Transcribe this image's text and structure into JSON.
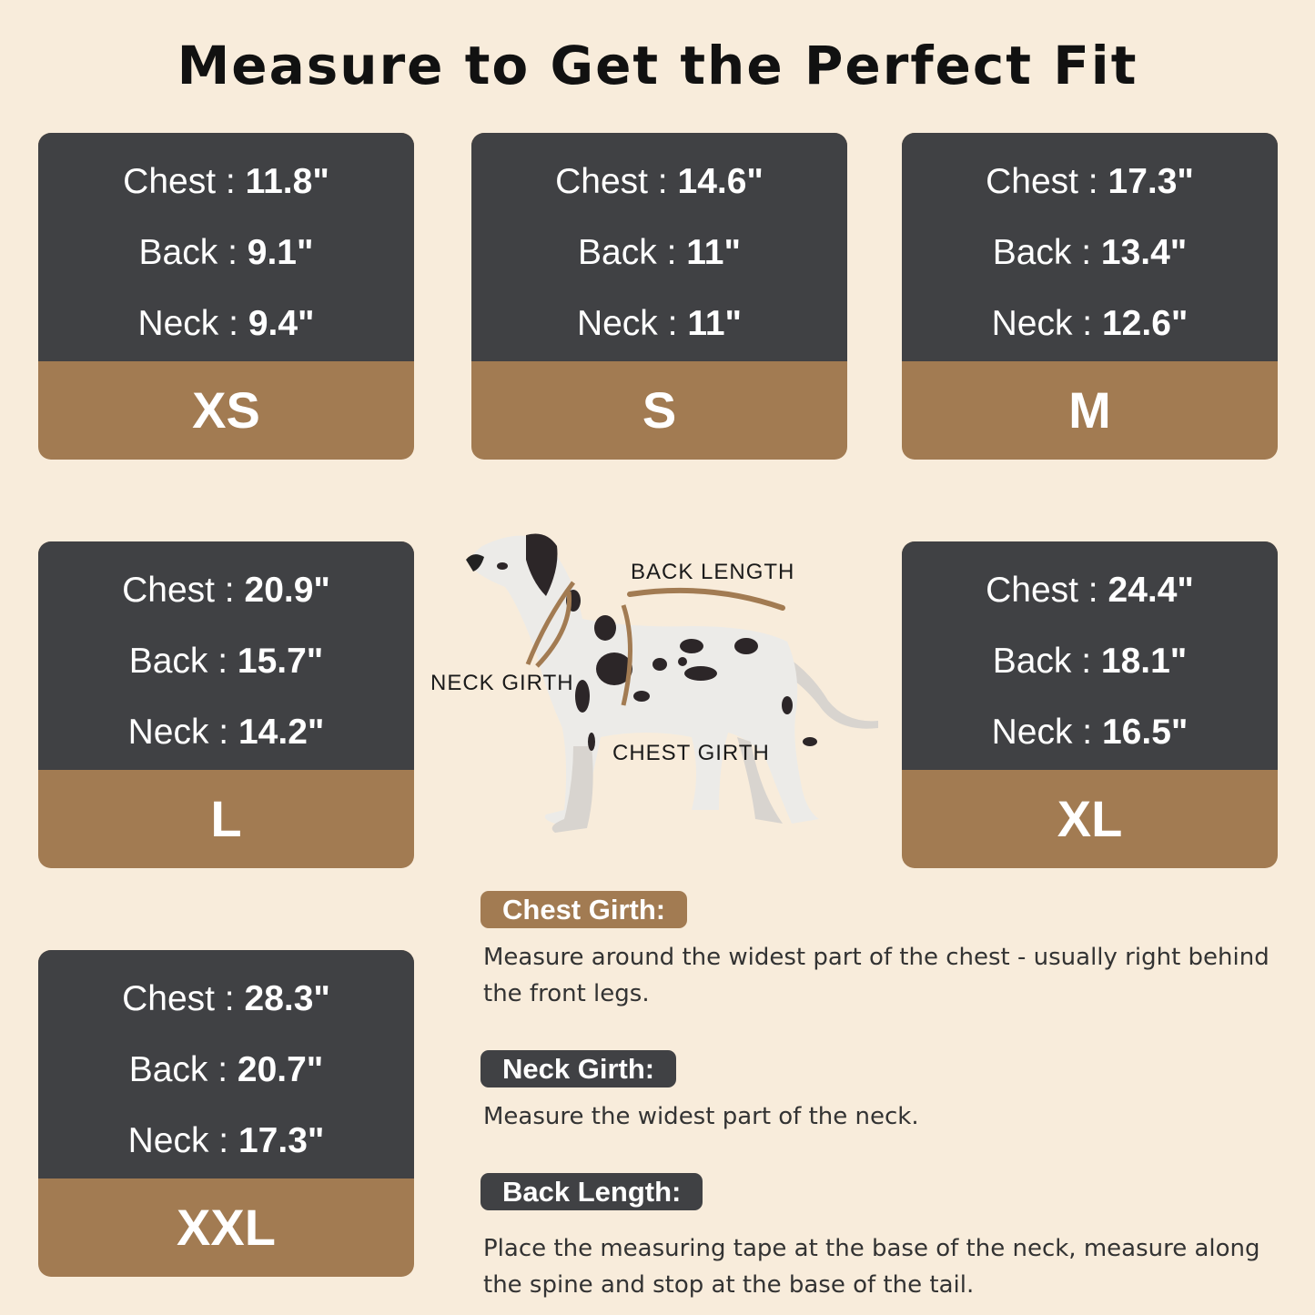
{
  "title": "Measure to Get the Perfect Fit",
  "colors": {
    "background": "#f8ecdb",
    "card_dark": "#404144",
    "card_brown": "#a27b52"
  },
  "sizes": [
    {
      "size": "XS",
      "chest_label": "Chest :",
      "chest": "11.8\"",
      "back_label": "Back :",
      "back": "9.1\"",
      "neck_label": "Neck :",
      "neck": "9.4\""
    },
    {
      "size": "S",
      "chest_label": "Chest :",
      "chest": "14.6\"",
      "back_label": "Back :",
      "back": "11\"",
      "neck_label": "Neck :",
      "neck": "11\""
    },
    {
      "size": "M",
      "chest_label": "Chest :",
      "chest": "17.3\"",
      "back_label": "Back :",
      "back": "13.4\"",
      "neck_label": "Neck :",
      "neck": "12.6\""
    },
    {
      "size": "L",
      "chest_label": "Chest :",
      "chest": "20.9\"",
      "back_label": "Back :",
      "back": "15.7\"",
      "neck_label": "Neck :",
      "neck": "14.2\""
    },
    {
      "size": "XL",
      "chest_label": "Chest :",
      "chest": "24.4\"",
      "back_label": "Back :",
      "back": "18.1\"",
      "neck_label": "Neck :",
      "neck": "16.5\""
    },
    {
      "size": "XXL",
      "chest_label": "Chest :",
      "chest": "28.3\"",
      "back_label": "Back :",
      "back": "20.7\"",
      "neck_label": "Neck :",
      "neck": "17.3\""
    }
  ],
  "diagram": {
    "back_length": "BACK LENGTH",
    "neck_girth": "NECK GIRTH",
    "chest_girth": "CHEST GIRTH"
  },
  "guide": [
    {
      "label": "Chest Girth:",
      "text": "Measure around the widest part of the chest - usually right behind the front legs."
    },
    {
      "label": "Neck Girth:",
      "text": "Measure the widest part of the neck."
    },
    {
      "label": "Back Length:",
      "text": "Place the measuring tape at the base of the neck, measure along the spine and stop at the base of the tail."
    }
  ]
}
